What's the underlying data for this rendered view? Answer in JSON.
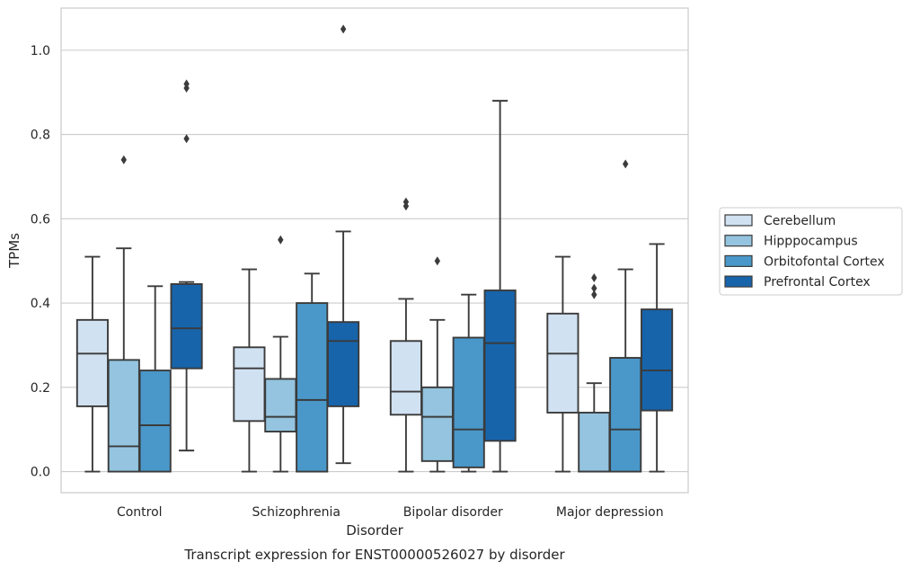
{
  "chart_data": {
    "type": "box",
    "xlabel": "Disorder",
    "ylabel": "TPMs",
    "caption": "Transcript expression for ENST00000526027 by disorder",
    "ylim": [
      -0.05,
      1.1
    ],
    "yticks": [
      0.0,
      0.2,
      0.4,
      0.6,
      0.8,
      1.0
    ],
    "ytick_labels": [
      "0.0",
      "0.2",
      "0.4",
      "0.6",
      "0.8",
      "1.0"
    ],
    "grid": "horizontal",
    "legend_position": "right",
    "categories": [
      "Control",
      "Schizophrenia",
      "Bipolar disorder",
      "Major depression"
    ],
    "series": [
      {
        "name": "Cerebellum",
        "color": "#d0e1f2",
        "boxes": [
          {
            "whisker_low": 0.0,
            "q1": 0.155,
            "median": 0.28,
            "q3": 0.36,
            "whisker_high": 0.51,
            "outliers": []
          },
          {
            "whisker_low": 0.0,
            "q1": 0.12,
            "median": 0.245,
            "q3": 0.295,
            "whisker_high": 0.48,
            "outliers": []
          },
          {
            "whisker_low": 0.0,
            "q1": 0.135,
            "median": 0.19,
            "q3": 0.31,
            "whisker_high": 0.41,
            "outliers": [
              0.63,
              0.64
            ]
          },
          {
            "whisker_low": 0.0,
            "q1": 0.14,
            "median": 0.28,
            "q3": 0.375,
            "whisker_high": 0.51,
            "outliers": []
          }
        ]
      },
      {
        "name": "Hipppocampus",
        "color": "#94c4df",
        "boxes": [
          {
            "whisker_low": 0.0,
            "q1": 0.0,
            "median": 0.06,
            "q3": 0.265,
            "whisker_high": 0.53,
            "outliers": [
              0.74
            ]
          },
          {
            "whisker_low": 0.0,
            "q1": 0.095,
            "median": 0.13,
            "q3": 0.22,
            "whisker_high": 0.32,
            "outliers": [
              0.55
            ]
          },
          {
            "whisker_low": 0.0,
            "q1": 0.025,
            "median": 0.13,
            "q3": 0.2,
            "whisker_high": 0.36,
            "outliers": [
              0.5
            ]
          },
          {
            "whisker_low": 0.0,
            "q1": 0.0,
            "median": 0.0,
            "q3": 0.14,
            "whisker_high": 0.21,
            "outliers": [
              0.42,
              0.435,
              0.46
            ]
          }
        ]
      },
      {
        "name": "Orbitofontal Cortex",
        "color": "#4a98c9",
        "boxes": [
          {
            "whisker_low": 0.0,
            "q1": 0.0,
            "median": 0.11,
            "q3": 0.24,
            "whisker_high": 0.44,
            "outliers": []
          },
          {
            "whisker_low": 0.0,
            "q1": 0.0,
            "median": 0.17,
            "q3": 0.4,
            "whisker_high": 0.47,
            "outliers": []
          },
          {
            "whisker_low": 0.0,
            "q1": 0.01,
            "median": 0.1,
            "q3": 0.318,
            "whisker_high": 0.42,
            "outliers": []
          },
          {
            "whisker_low": 0.0,
            "q1": 0.0,
            "median": 0.1,
            "q3": 0.27,
            "whisker_high": 0.48,
            "outliers": [
              0.73
            ]
          }
        ]
      },
      {
        "name": "Prefrontal Cortex",
        "color": "#1764ab",
        "boxes": [
          {
            "whisker_low": 0.05,
            "q1": 0.245,
            "median": 0.34,
            "q3": 0.445,
            "whisker_high": 0.45,
            "outliers": [
              0.79,
              0.91,
              0.92
            ]
          },
          {
            "whisker_low": 0.02,
            "q1": 0.155,
            "median": 0.31,
            "q3": 0.355,
            "whisker_high": 0.57,
            "outliers": [
              1.05
            ]
          },
          {
            "whisker_low": 0.0,
            "q1": 0.073,
            "median": 0.305,
            "q3": 0.43,
            "whisker_high": 0.88,
            "outliers": []
          },
          {
            "whisker_low": 0.0,
            "q1": 0.145,
            "median": 0.24,
            "q3": 0.385,
            "whisker_high": 0.54,
            "outliers": []
          }
        ]
      }
    ]
  }
}
